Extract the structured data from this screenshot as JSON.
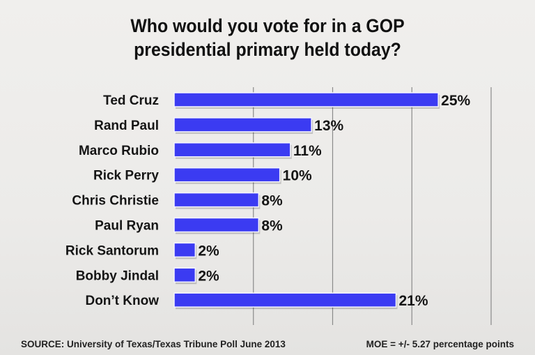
{
  "chart_data": {
    "type": "bar",
    "orientation": "horizontal",
    "title": "Who would you vote for in a GOP presidential primary held today?",
    "title_lines": [
      "Who would you vote for in a GOP",
      "presidential primary held today?"
    ],
    "categories": [
      "Ted Cruz",
      "Rand Paul",
      "Marco Rubio",
      "Rick Perry",
      "Chris Christie",
      "Paul Ryan",
      "Rick Santorum",
      "Bobby Jindal",
      "Don’t Know"
    ],
    "values": [
      25,
      13,
      11,
      10,
      8,
      8,
      2,
      2,
      21
    ],
    "data_labels": [
      "25%",
      "13%",
      "11%",
      "10%",
      "8%",
      "8%",
      "2%",
      "2%",
      "21%"
    ],
    "xlim": [
      0,
      30
    ],
    "gridlines": [
      7.5,
      15,
      22.5,
      30
    ],
    "grid": true,
    "xlabel": "",
    "ylabel": "",
    "bar_color": "#3b3bf2"
  },
  "footer": {
    "source": "SOURCE: University of Texas/Texas Tribune Poll June 2013",
    "moe": "MOE = +/- 5.27 percentage points"
  }
}
